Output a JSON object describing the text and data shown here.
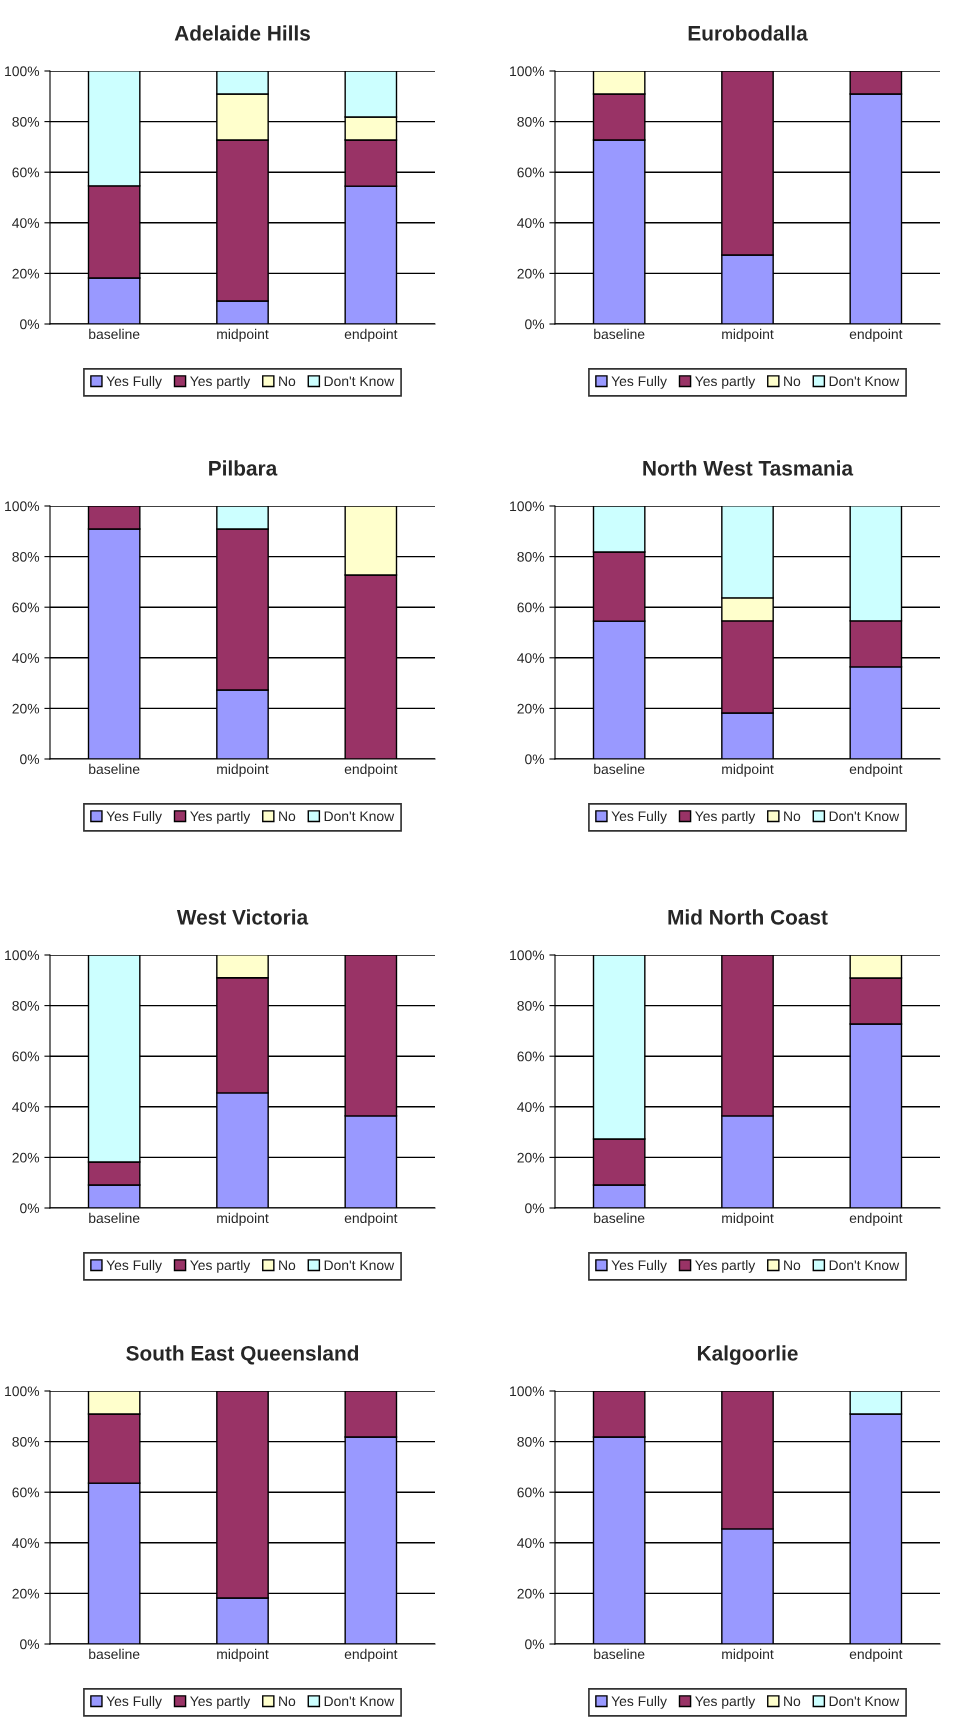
{
  "chart_data": [
    {
      "type": "bar",
      "title": "Adelaide Hills",
      "categories": [
        "baseline",
        "midpoint",
        "endpoint"
      ],
      "stacked": true,
      "ylim": [
        0,
        100
      ],
      "yticks": [
        {
          "value": 0,
          "label": "0%"
        },
        {
          "value": 20,
          "label": "20%"
        },
        {
          "value": 40,
          "label": "40%"
        },
        {
          "value": 60,
          "label": "60%"
        },
        {
          "value": 80,
          "label": "80%"
        },
        {
          "value": 100,
          "label": "100%"
        }
      ],
      "grid": "y",
      "legend": "bottom",
      "series": [
        {
          "name": "Yes Fully",
          "color": "#9999ff",
          "values": [
            18.2,
            9.1,
            54.5
          ]
        },
        {
          "name": "Yes partly",
          "color": "#993366",
          "values": [
            36.4,
            63.6,
            18.2
          ]
        },
        {
          "name": "No",
          "color": "#ffffcc",
          "values": [
            0,
            18.2,
            9.1
          ]
        },
        {
          "name": "Don't Know",
          "color": "#ccffff",
          "values": [
            45.5,
            9.1,
            18.2
          ]
        }
      ]
    },
    {
      "type": "bar",
      "title": "Eurobodalla",
      "categories": [
        "baseline",
        "midpoint",
        "endpoint"
      ],
      "stacked": true,
      "ylim": [
        0,
        100
      ],
      "yticks": [
        {
          "value": 0,
          "label": "0%"
        },
        {
          "value": 20,
          "label": "20%"
        },
        {
          "value": 40,
          "label": "40%"
        },
        {
          "value": 60,
          "label": "60%"
        },
        {
          "value": 80,
          "label": "80%"
        },
        {
          "value": 100,
          "label": "100%"
        }
      ],
      "grid": "y",
      "legend": "bottom",
      "series": [
        {
          "name": "Yes Fully",
          "color": "#9999ff",
          "values": [
            72.7,
            27.3,
            90.9
          ]
        },
        {
          "name": "Yes partly",
          "color": "#993366",
          "values": [
            18.2,
            72.7,
            9.1
          ]
        },
        {
          "name": "No",
          "color": "#ffffcc",
          "values": [
            9.1,
            0,
            0
          ]
        },
        {
          "name": "Don't Know",
          "color": "#ccffff",
          "values": [
            0,
            0,
            0
          ]
        }
      ]
    },
    {
      "type": "bar",
      "title": "Pilbara",
      "categories": [
        "baseline",
        "midpoint",
        "endpoint"
      ],
      "stacked": true,
      "ylim": [
        0,
        100
      ],
      "yticks": [
        {
          "value": 0,
          "label": "0%"
        },
        {
          "value": 20,
          "label": "20%"
        },
        {
          "value": 40,
          "label": "40%"
        },
        {
          "value": 60,
          "label": "60%"
        },
        {
          "value": 80,
          "label": "80%"
        },
        {
          "value": 100,
          "label": "100%"
        }
      ],
      "grid": "y",
      "legend": "bottom",
      "series": [
        {
          "name": "Yes Fully",
          "color": "#9999ff",
          "values": [
            90.9,
            27.3,
            0
          ]
        },
        {
          "name": "Yes partly",
          "color": "#993366",
          "values": [
            9.1,
            63.6,
            72.7
          ]
        },
        {
          "name": "No",
          "color": "#ffffcc",
          "values": [
            0,
            0,
            27.3
          ]
        },
        {
          "name": "Don't Know",
          "color": "#ccffff",
          "values": [
            0,
            9.1,
            0
          ]
        }
      ]
    },
    {
      "type": "bar",
      "title": "North West Tasmania",
      "categories": [
        "baseline",
        "midpoint",
        "endpoint"
      ],
      "stacked": true,
      "ylim": [
        0,
        100
      ],
      "yticks": [
        {
          "value": 0,
          "label": "0%"
        },
        {
          "value": 20,
          "label": "20%"
        },
        {
          "value": 40,
          "label": "40%"
        },
        {
          "value": 60,
          "label": "60%"
        },
        {
          "value": 80,
          "label": "80%"
        },
        {
          "value": 100,
          "label": "100%"
        }
      ],
      "grid": "y",
      "legend": "bottom",
      "series": [
        {
          "name": "Yes Fully",
          "color": "#9999ff",
          "values": [
            54.5,
            18.2,
            36.4
          ]
        },
        {
          "name": "Yes partly",
          "color": "#993366",
          "values": [
            27.3,
            36.4,
            18.2
          ]
        },
        {
          "name": "No",
          "color": "#ffffcc",
          "values": [
            0,
            9.1,
            0
          ]
        },
        {
          "name": "Don't Know",
          "color": "#ccffff",
          "values": [
            18.2,
            36.4,
            45.5
          ]
        }
      ]
    },
    {
      "type": "bar",
      "title": "West Victoria",
      "categories": [
        "baseline",
        "midpoint",
        "endpoint"
      ],
      "stacked": true,
      "ylim": [
        0,
        100
      ],
      "yticks": [
        {
          "value": 0,
          "label": "0%"
        },
        {
          "value": 20,
          "label": "20%"
        },
        {
          "value": 40,
          "label": "40%"
        },
        {
          "value": 60,
          "label": "60%"
        },
        {
          "value": 80,
          "label": "80%"
        },
        {
          "value": 100,
          "label": "100%"
        }
      ],
      "grid": "y",
      "legend": "bottom",
      "series": [
        {
          "name": "Yes Fully",
          "color": "#9999ff",
          "values": [
            9.1,
            45.5,
            36.4
          ]
        },
        {
          "name": "Yes partly",
          "color": "#993366",
          "values": [
            9.1,
            45.5,
            63.6
          ]
        },
        {
          "name": "No",
          "color": "#ffffcc",
          "values": [
            0,
            9.1,
            0
          ]
        },
        {
          "name": "Don't Know",
          "color": "#ccffff",
          "values": [
            81.8,
            0,
            0
          ]
        }
      ]
    },
    {
      "type": "bar",
      "title": "Mid North Coast",
      "categories": [
        "baseline",
        "midpoint",
        "endpoint"
      ],
      "stacked": true,
      "ylim": [
        0,
        100
      ],
      "yticks": [
        {
          "value": 0,
          "label": "0%"
        },
        {
          "value": 20,
          "label": "20%"
        },
        {
          "value": 40,
          "label": "40%"
        },
        {
          "value": 60,
          "label": "60%"
        },
        {
          "value": 80,
          "label": "80%"
        },
        {
          "value": 100,
          "label": "100%"
        }
      ],
      "grid": "y",
      "legend": "bottom",
      "series": [
        {
          "name": "Yes Fully",
          "color": "#9999ff",
          "values": [
            9.1,
            36.4,
            72.7
          ]
        },
        {
          "name": "Yes partly",
          "color": "#993366",
          "values": [
            18.2,
            63.6,
            18.2
          ]
        },
        {
          "name": "No",
          "color": "#ffffcc",
          "values": [
            0,
            0,
            9.1
          ]
        },
        {
          "name": "Don't Know",
          "color": "#ccffff",
          "values": [
            72.7,
            0,
            0
          ]
        }
      ]
    },
    {
      "type": "bar",
      "title": "South East Queensland",
      "categories": [
        "baseline",
        "midpoint",
        "endpoint"
      ],
      "stacked": true,
      "ylim": [
        0,
        100
      ],
      "yticks": [
        {
          "value": 0,
          "label": "0%"
        },
        {
          "value": 20,
          "label": "20%"
        },
        {
          "value": 40,
          "label": "40%"
        },
        {
          "value": 60,
          "label": "60%"
        },
        {
          "value": 80,
          "label": "80%"
        },
        {
          "value": 100,
          "label": "100%"
        }
      ],
      "grid": "y",
      "legend": "bottom",
      "series": [
        {
          "name": "Yes Fully",
          "color": "#9999ff",
          "values": [
            63.6,
            18.2,
            81.8
          ]
        },
        {
          "name": "Yes partly",
          "color": "#993366",
          "values": [
            27.3,
            81.8,
            18.2
          ]
        },
        {
          "name": "No",
          "color": "#ffffcc",
          "values": [
            9.1,
            0,
            0
          ]
        },
        {
          "name": "Don't Know",
          "color": "#ccffff",
          "values": [
            0,
            0,
            0
          ]
        }
      ]
    },
    {
      "type": "bar",
      "title": "Kalgoorlie",
      "categories": [
        "baseline",
        "midpoint",
        "endpoint"
      ],
      "stacked": true,
      "ylim": [
        0,
        100
      ],
      "yticks": [
        {
          "value": 0,
          "label": "0%"
        },
        {
          "value": 20,
          "label": "20%"
        },
        {
          "value": 40,
          "label": "40%"
        },
        {
          "value": 60,
          "label": "60%"
        },
        {
          "value": 80,
          "label": "80%"
        },
        {
          "value": 100,
          "label": "100%"
        }
      ],
      "grid": "y",
      "legend": "bottom",
      "series": [
        {
          "name": "Yes Fully",
          "color": "#9999ff",
          "values": [
            81.8,
            45.5,
            90.9
          ]
        },
        {
          "name": "Yes partly",
          "color": "#993366",
          "values": [
            18.2,
            54.5,
            0
          ]
        },
        {
          "name": "No",
          "color": "#ffffcc",
          "values": [
            0,
            0,
            0
          ]
        },
        {
          "name": "Don't Know",
          "color": "#ccffff",
          "values": [
            0,
            0,
            9.1
          ]
        }
      ]
    }
  ]
}
